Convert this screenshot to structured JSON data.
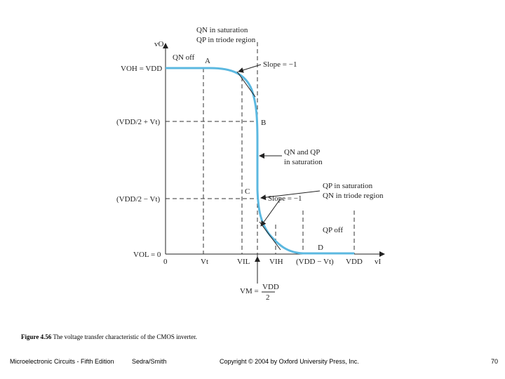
{
  "figure": {
    "axis_labels": {
      "y": "vO",
      "x": "vI"
    },
    "y_labels": [
      "VOH = VDD",
      "(VDD/2 + Vt)",
      "(VDD/2 − Vt)",
      "VOL = 0"
    ],
    "x_labels": [
      "0",
      "Vt",
      "VIL",
      "VIH",
      "(VDD − Vt)",
      "VDD"
    ],
    "points": [
      "A",
      "B",
      "C",
      "D"
    ],
    "annotations": {
      "qn_off": "QN off",
      "top_region": [
        "QN in saturation",
        "QP in triode region"
      ],
      "slope_top": "Slope = −1",
      "mid_region": [
        "QN and QP",
        "in saturation"
      ],
      "bottom_region": [
        "QP in saturation",
        "QN in triode region"
      ],
      "slope_bottom": "Slope = −1",
      "qp_off": "QP off",
      "vm": [
        "VM =",
        "VDD",
        "2"
      ]
    }
  },
  "caption": {
    "label": "Figure 4.56",
    "text": "The voltage transfer characteristic of the CMOS inverter."
  },
  "footer": {
    "book": "Microelectronic Circuits - Fifth Edition",
    "authors": "Sedra/Smith",
    "copyright": "Copyright © 2004 by Oxford University Press, Inc.",
    "page": "70"
  }
}
